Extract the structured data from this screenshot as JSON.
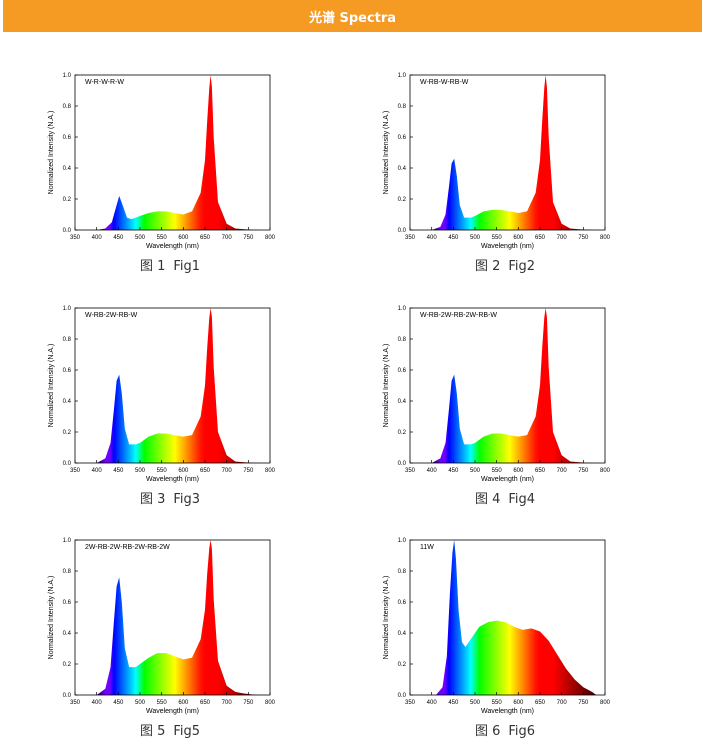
{
  "page": {
    "banner_title": "光谱 Spectra"
  },
  "colors": {
    "banner": "#f59a23"
  },
  "chart_data": [
    {
      "type": "area",
      "label": "W-R-W-R-W",
      "caption_cn": "图 1",
      "caption_en": "Fig1",
      "xlabel": "Wavelength (nm)",
      "ylabel": "Normalized Intensity (N.A.)",
      "xlim": [
        350,
        800
      ],
      "ylim": [
        0,
        1.0
      ],
      "x_ticks": [
        "350",
        "400",
        "450",
        "500",
        "550",
        "600",
        "650",
        "700",
        "750",
        "800"
      ],
      "y_ticks": [
        "0.0",
        "0.2",
        "0.4",
        "0.6",
        "0.8",
        "1.0"
      ],
      "x": [
        400,
        420,
        435,
        445,
        452,
        460,
        470,
        480,
        490,
        500,
        520,
        540,
        560,
        580,
        600,
        620,
        640,
        650,
        655,
        660,
        663,
        666,
        670,
        680,
        700,
        720,
        740,
        760,
        780
      ],
      "y": [
        0,
        0.01,
        0.05,
        0.15,
        0.22,
        0.16,
        0.08,
        0.07,
        0.08,
        0.09,
        0.11,
        0.12,
        0.12,
        0.11,
        0.1,
        0.12,
        0.24,
        0.45,
        0.7,
        0.92,
        1.0,
        0.92,
        0.6,
        0.18,
        0.04,
        0.01,
        0.005,
        0.002,
        0
      ]
    },
    {
      "type": "area",
      "label": "W-RB-W-RB-W",
      "caption_cn": "图 2",
      "caption_en": "Fig2",
      "xlabel": "Wavelength (nm)",
      "ylabel": "Normalized Intensity (N.A.)",
      "xlim": [
        350,
        800
      ],
      "ylim": [
        0,
        1.0
      ],
      "x_ticks": [
        "350",
        "400",
        "450",
        "500",
        "550",
        "600",
        "650",
        "700",
        "750",
        "800"
      ],
      "y_ticks": [
        "0.0",
        "0.2",
        "0.4",
        "0.6",
        "0.8",
        "1.0"
      ],
      "x": [
        400,
        420,
        432,
        440,
        446,
        452,
        458,
        465,
        475,
        490,
        500,
        520,
        540,
        560,
        580,
        600,
        620,
        640,
        650,
        655,
        660,
        663,
        666,
        670,
        680,
        700,
        720,
        740,
        760,
        780
      ],
      "y": [
        0,
        0.02,
        0.1,
        0.28,
        0.43,
        0.46,
        0.35,
        0.16,
        0.08,
        0.08,
        0.09,
        0.12,
        0.13,
        0.13,
        0.12,
        0.11,
        0.12,
        0.24,
        0.45,
        0.7,
        0.92,
        1.0,
        0.92,
        0.6,
        0.18,
        0.04,
        0.01,
        0.005,
        0.002,
        0
      ]
    },
    {
      "type": "area",
      "label": "W-RB-2W-RB-W",
      "caption_cn": "图 3",
      "caption_en": "Fig3",
      "xlabel": "Wavelength (nm)",
      "ylabel": "Normalized Intensity (N.A.)",
      "xlim": [
        350,
        800
      ],
      "ylim": [
        0,
        1.0
      ],
      "x_ticks": [
        "350",
        "400",
        "450",
        "500",
        "550",
        "600",
        "650",
        "700",
        "750",
        "800"
      ],
      "y_ticks": [
        "0.0",
        "0.2",
        "0.4",
        "0.6",
        "0.8",
        "1.0"
      ],
      "x": [
        400,
        420,
        432,
        440,
        446,
        452,
        458,
        465,
        475,
        490,
        500,
        520,
        540,
        560,
        580,
        600,
        620,
        640,
        650,
        655,
        660,
        663,
        666,
        670,
        680,
        700,
        720,
        740,
        760,
        780
      ],
      "y": [
        0,
        0.03,
        0.13,
        0.35,
        0.53,
        0.57,
        0.45,
        0.22,
        0.12,
        0.12,
        0.13,
        0.17,
        0.19,
        0.19,
        0.18,
        0.17,
        0.18,
        0.3,
        0.5,
        0.74,
        0.94,
        1.0,
        0.94,
        0.62,
        0.2,
        0.05,
        0.01,
        0.005,
        0.002,
        0
      ]
    },
    {
      "type": "area",
      "label": "W-RB-2W-RB-2W-RB-W",
      "caption_cn": "图 4",
      "caption_en": "Fig4",
      "xlabel": "Wavelength (nm)",
      "ylabel": "Normalized Intensity (N.A.)",
      "xlim": [
        350,
        800
      ],
      "ylim": [
        0,
        1.0
      ],
      "x_ticks": [
        "350",
        "400",
        "450",
        "500",
        "550",
        "600",
        "650",
        "700",
        "750",
        "800"
      ],
      "y_ticks": [
        "0.0",
        "0.2",
        "0.4",
        "0.6",
        "0.8",
        "1.0"
      ],
      "x": [
        400,
        420,
        432,
        440,
        446,
        452,
        458,
        465,
        475,
        490,
        500,
        520,
        540,
        560,
        580,
        600,
        620,
        640,
        650,
        655,
        660,
        663,
        666,
        670,
        680,
        700,
        720,
        740,
        760,
        780
      ],
      "y": [
        0,
        0.03,
        0.13,
        0.35,
        0.53,
        0.57,
        0.45,
        0.22,
        0.12,
        0.12,
        0.13,
        0.17,
        0.19,
        0.19,
        0.18,
        0.17,
        0.18,
        0.3,
        0.5,
        0.74,
        0.94,
        1.0,
        0.94,
        0.62,
        0.2,
        0.05,
        0.01,
        0.005,
        0.002,
        0
      ]
    },
    {
      "type": "area",
      "label": "2W-RB-2W-RB-2W-RB-2W",
      "caption_cn": "图 5",
      "caption_en": "Fig5",
      "xlabel": "Wavelength (nm)",
      "ylabel": "Normalized Intensity (N.A.)",
      "xlim": [
        350,
        800
      ],
      "ylim": [
        0,
        1.0
      ],
      "x_ticks": [
        "350",
        "400",
        "450",
        "500",
        "550",
        "600",
        "650",
        "700",
        "750",
        "800"
      ],
      "y_ticks": [
        "0.0",
        "0.2",
        "0.4",
        "0.6",
        "0.8",
        "1.0"
      ],
      "x": [
        400,
        420,
        432,
        440,
        446,
        452,
        458,
        465,
        475,
        490,
        500,
        520,
        540,
        560,
        580,
        600,
        620,
        640,
        650,
        655,
        660,
        663,
        666,
        670,
        680,
        700,
        720,
        740,
        760,
        780
      ],
      "y": [
        0,
        0.04,
        0.18,
        0.48,
        0.7,
        0.76,
        0.6,
        0.3,
        0.18,
        0.18,
        0.2,
        0.24,
        0.27,
        0.27,
        0.25,
        0.23,
        0.24,
        0.36,
        0.55,
        0.78,
        0.95,
        1.0,
        0.94,
        0.62,
        0.22,
        0.06,
        0.02,
        0.01,
        0.003,
        0
      ]
    },
    {
      "type": "area",
      "label": "11W",
      "caption_cn": "图 6",
      "caption_en": "Fig6",
      "xlabel": "Wavelength (nm)",
      "ylabel": "Normalized Intensity (N.A.)",
      "xlim": [
        350,
        800
      ],
      "ylim": [
        0,
        1.0
      ],
      "x_ticks": [
        "350",
        "400",
        "450",
        "500",
        "550",
        "600",
        "650",
        "700",
        "750",
        "800"
      ],
      "y_ticks": [
        "0.0",
        "0.2",
        "0.4",
        "0.6",
        "0.8",
        "1.0"
      ],
      "x": [
        410,
        425,
        435,
        442,
        448,
        452,
        456,
        462,
        470,
        478,
        490,
        510,
        530,
        550,
        570,
        590,
        610,
        630,
        650,
        670,
        690,
        710,
        730,
        750,
        770,
        780
      ],
      "y": [
        0,
        0.05,
        0.25,
        0.65,
        0.92,
        1.0,
        0.88,
        0.55,
        0.34,
        0.31,
        0.36,
        0.44,
        0.47,
        0.48,
        0.47,
        0.44,
        0.42,
        0.43,
        0.41,
        0.35,
        0.26,
        0.17,
        0.1,
        0.05,
        0.02,
        0
      ]
    }
  ]
}
